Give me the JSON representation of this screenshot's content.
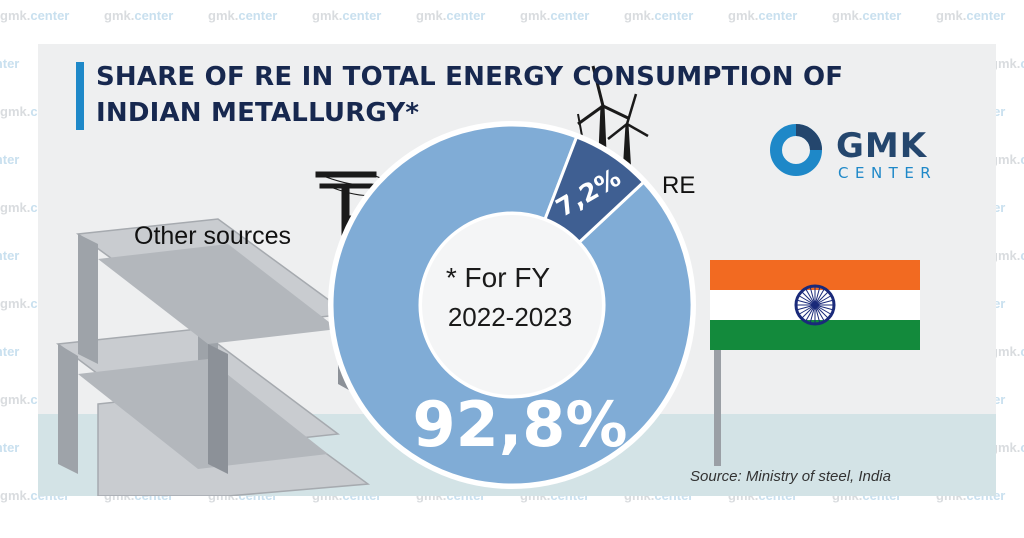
{
  "title": {
    "line1": "SHARE OF RE IN TOTAL ENERGY CONSUMPTION OF",
    "line2": "INDIAN METALLURGY*"
  },
  "logo": {
    "name": "GMK",
    "sub": "CENTER",
    "icon": "donut-logo-icon"
  },
  "watermark": {
    "left": "gmk.",
    "right": "center"
  },
  "chart_data": {
    "type": "pie",
    "style": "donut",
    "slices": [
      {
        "label": "Other sources",
        "value": 92.8,
        "value_label": "92,8%",
        "color": "#80acd6"
      },
      {
        "label": "RE",
        "value": 7.2,
        "value_label": "7,2%",
        "color": "#3f5f92"
      }
    ]
  },
  "footnote": {
    "line1": "* For FY",
    "line2": "2022-2023"
  },
  "source": "Source: Ministry of steel, India",
  "icons": [
    "wind-turbine-icon",
    "power-pole-icon",
    "steel-beam-icon",
    "india-flag-icon"
  ],
  "colors": {
    "accent": "#1e88c8",
    "title": "#17284f",
    "other_sources": "#80acd6",
    "re": "#3f5f92"
  }
}
